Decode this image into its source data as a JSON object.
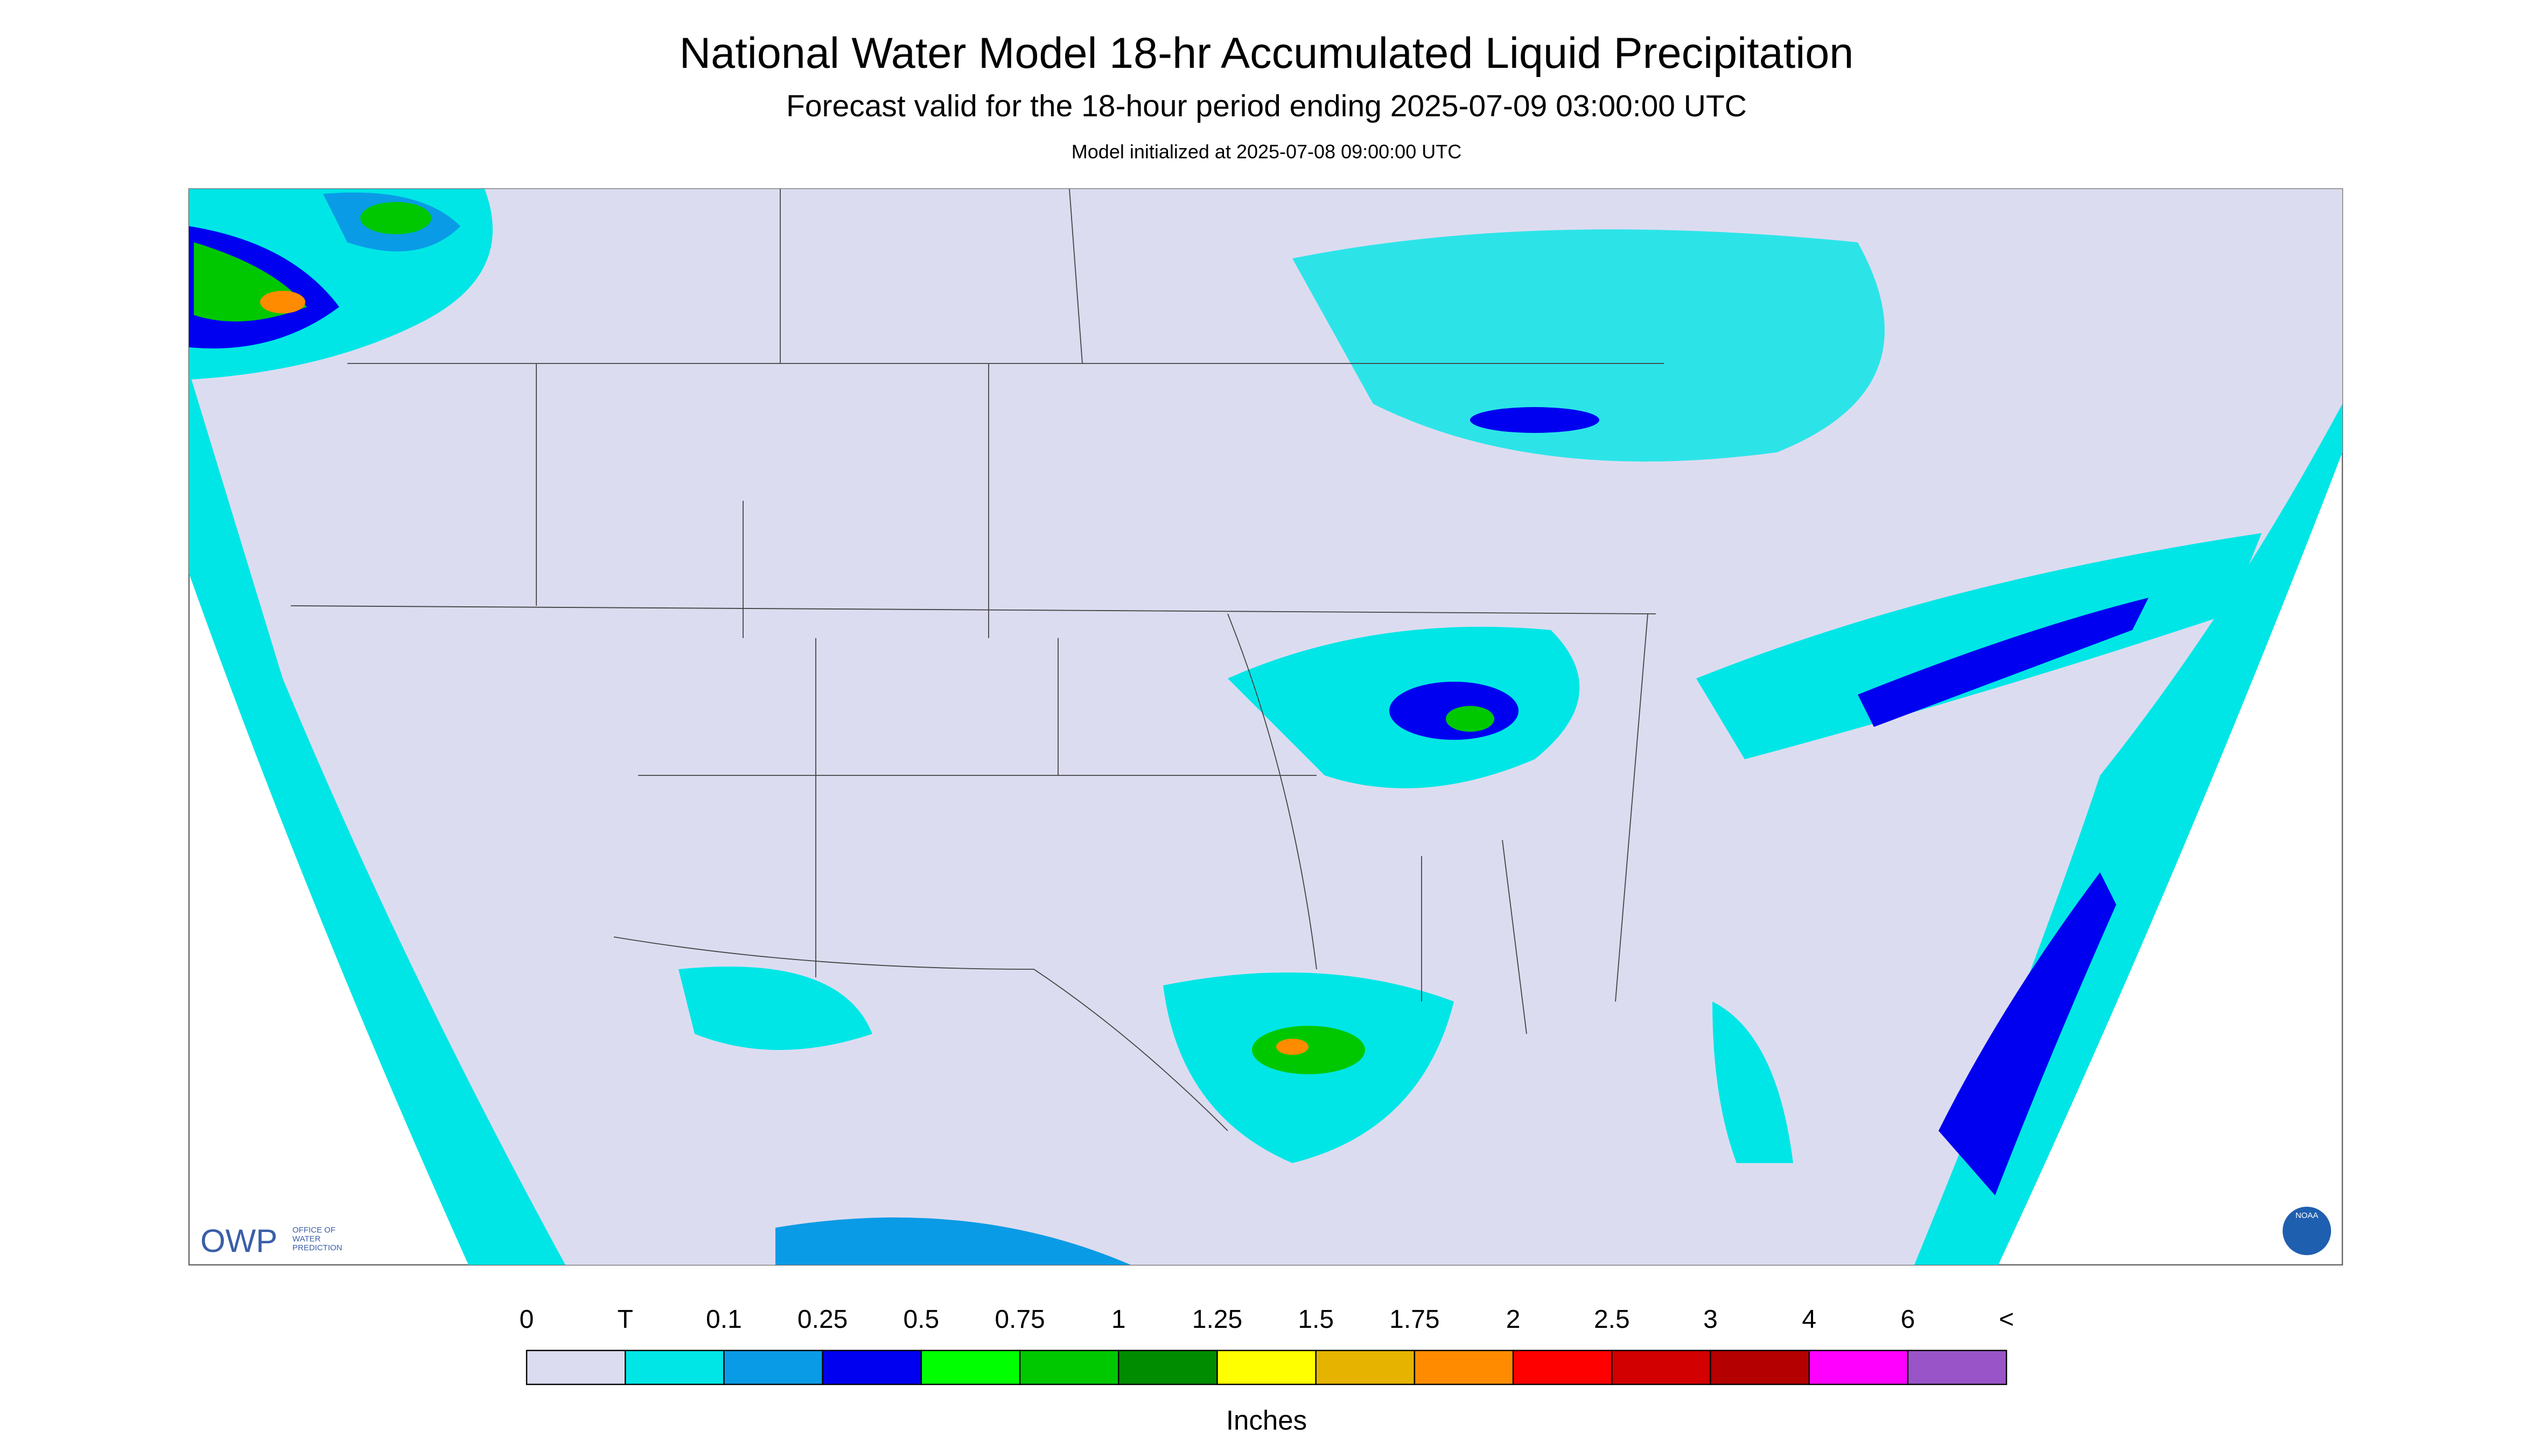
{
  "header": {
    "title": "National Water Model 18-hr Accumulated Liquid Precipitation",
    "subtitle": "Forecast valid for the 18-hour period ending 2025-07-09 03:00:00 UTC",
    "note": "Model initialized at 2025-07-08 09:00:00 UTC"
  },
  "legend": {
    "labels": [
      "0",
      "T",
      "0.1",
      "0.25",
      "0.5",
      "0.75",
      "1",
      "1.25",
      "1.5",
      "1.75",
      "2",
      "2.5",
      "3",
      "4",
      "6",
      "<"
    ],
    "colors": [
      "#dcdcf0",
      "#00e6e6",
      "#0a9be6",
      "#0000f0",
      "#00ff00",
      "#00c800",
      "#008c00",
      "#ffff00",
      "#e6b400",
      "#ff8c00",
      "#ff0000",
      "#d20000",
      "#b40000",
      "#ff00ff",
      "#9955c8"
    ],
    "units": "Inches"
  },
  "logo": {
    "owp": "OWP",
    "lines": [
      "OFFICE OF",
      "WATER",
      "PREDICTION"
    ],
    "noaa": "NOAA"
  }
}
